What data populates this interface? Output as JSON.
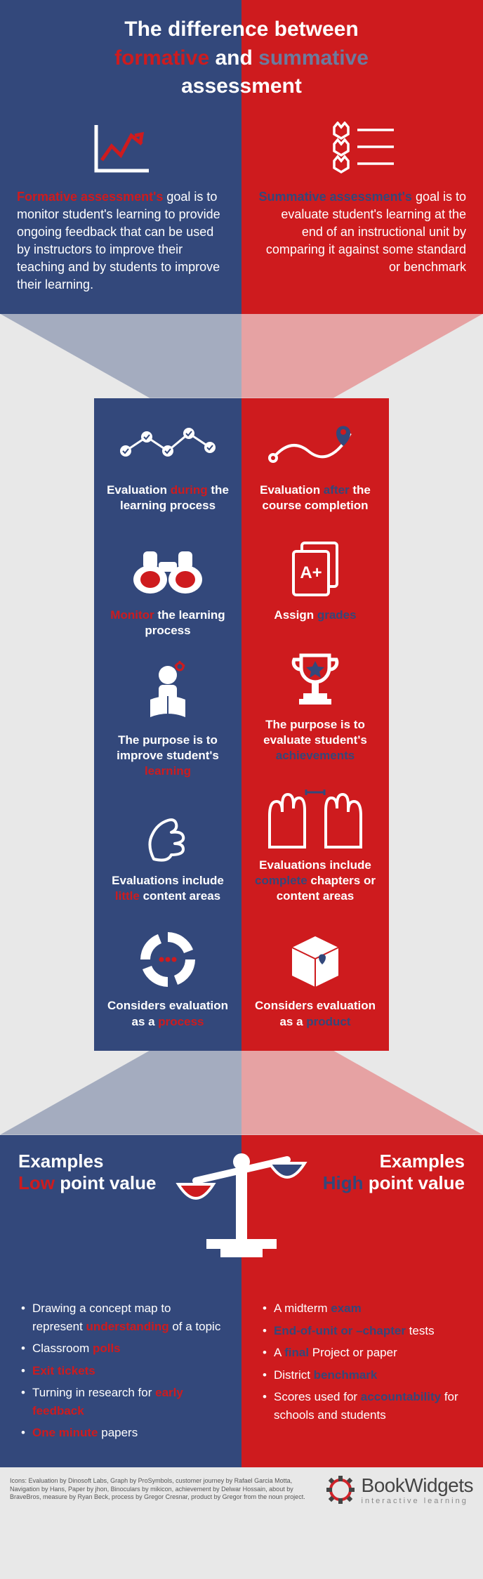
{
  "colors": {
    "blue": "#33487b",
    "red": "#ce1b1e",
    "blue_muted": "#a4acbf",
    "red_muted": "#e6a2a3",
    "bg": "#e8e8e8"
  },
  "header": {
    "title_line1": "The difference between",
    "title_kw_formative": "formative",
    "title_and": " and ",
    "title_kw_summative": "summative",
    "title_line3": "assessment",
    "formative_lead": "Formative assessment's",
    "formative_text": " goal is to monitor student's learning to provide ongoing feedback that can be used by instructors to improve their teaching and by students to improve their learning.",
    "summative_lead": "Summative assessment's",
    "summative_text": " goal  is to evaluate student's learning  at the end of an instructional unit by comparing it against some standard or benchmark"
  },
  "compare": {
    "left": [
      {
        "icon": "journey",
        "pre": "Evaluation ",
        "hl": "during",
        "post": " the learning process"
      },
      {
        "icon": "binoculars",
        "pre": "",
        "hl": "Monitor",
        "post": " the learning process"
      },
      {
        "icon": "reader",
        "pre": "The purpose is to improve student's ",
        "hl": "learning",
        "post": ""
      },
      {
        "icon": "hand-small",
        "pre": "Evaluations include ",
        "hl": "little",
        "post": " content areas"
      },
      {
        "icon": "process",
        "pre": "Considers evaluation as a ",
        "hl": "process",
        "post": ""
      }
    ],
    "right": [
      {
        "icon": "navigation",
        "pre": "Evaluation ",
        "hl": "after",
        "post": " the course completion"
      },
      {
        "icon": "paper",
        "pre": "Assign ",
        "hl": "grades",
        "post": ""
      },
      {
        "icon": "trophy",
        "pre": "The purpose is to evaluate student's ",
        "hl": "achievements",
        "post": ""
      },
      {
        "icon": "hands-large",
        "pre": "Evaluations include ",
        "hl": "complete",
        "post": " chapters or content areas"
      },
      {
        "icon": "product",
        "pre": "Considers evaluation as a ",
        "hl": "product",
        "post": ""
      }
    ]
  },
  "examples": {
    "left_title_1": "Examples",
    "left_title_2_hl": "Low",
    "left_title_2_rest": " point value",
    "right_title_1": "Examples",
    "right_title_2_hl": "High",
    "right_title_2_rest": " point value",
    "left_items": [
      {
        "pre": "Drawing a concept map to represent ",
        "hl": "understanding",
        "post": " of a topic"
      },
      {
        "pre": "Classroom ",
        "hl": "polls",
        "post": ""
      },
      {
        "pre": "",
        "hl": "Exit tickets",
        "post": ""
      },
      {
        "pre": "Turning in research for ",
        "hl": "early feedback",
        "post": ""
      },
      {
        "pre": "",
        "hl": "One minute",
        "post": " papers"
      }
    ],
    "right_items": [
      {
        "pre": "A midterm ",
        "hl": "exam",
        "post": ""
      },
      {
        "pre": "",
        "hl": "End-of-unit or –chapter",
        "post": " tests"
      },
      {
        "pre": "A ",
        "hl": "final",
        "post": " Project or paper"
      },
      {
        "pre": "District ",
        "hl": "benchmark",
        "post": ""
      },
      {
        "pre": "Scores used for ",
        "hl": "accountability",
        "post": " for schools and students"
      }
    ]
  },
  "footer": {
    "credits": "Icons: Evaluation by Dinosoft Labs, Graph by ProSymbols, customer journey by Rafael Garcia Motta, Navigation by Hans, Paper by jhon, Binoculars by mikicon, achievement by Delwar Hossain, about by BraveBros, measure by Ryan Beck, process by Gregor Cresnar, product by Gregor from the noun project.",
    "brand_book": "Book",
    "brand_widgets": "Widgets",
    "tagline": "interactive learning"
  }
}
